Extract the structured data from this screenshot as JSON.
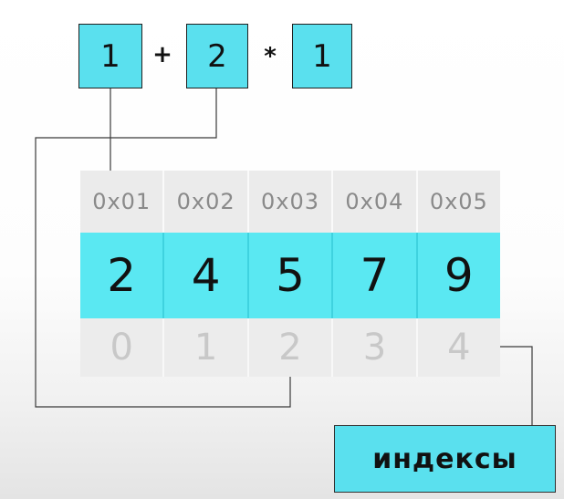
{
  "expression": {
    "operand1": "1",
    "operator1": "+",
    "operand2": "2",
    "operator2": "*",
    "operand3": "1"
  },
  "memory": {
    "addresses": [
      "0x01",
      "0x02",
      "0x03",
      "0x04",
      "0x05"
    ],
    "values": [
      "2",
      "4",
      "5",
      "7",
      "9"
    ],
    "indices": [
      "0",
      "1",
      "2",
      "3",
      "4"
    ]
  },
  "label": "индексы",
  "colors": {
    "cyan": "#5ae8f2",
    "address_bg": "#ebebeb",
    "index_text": "#c8c8c8",
    "line": "#3a3a3a"
  }
}
